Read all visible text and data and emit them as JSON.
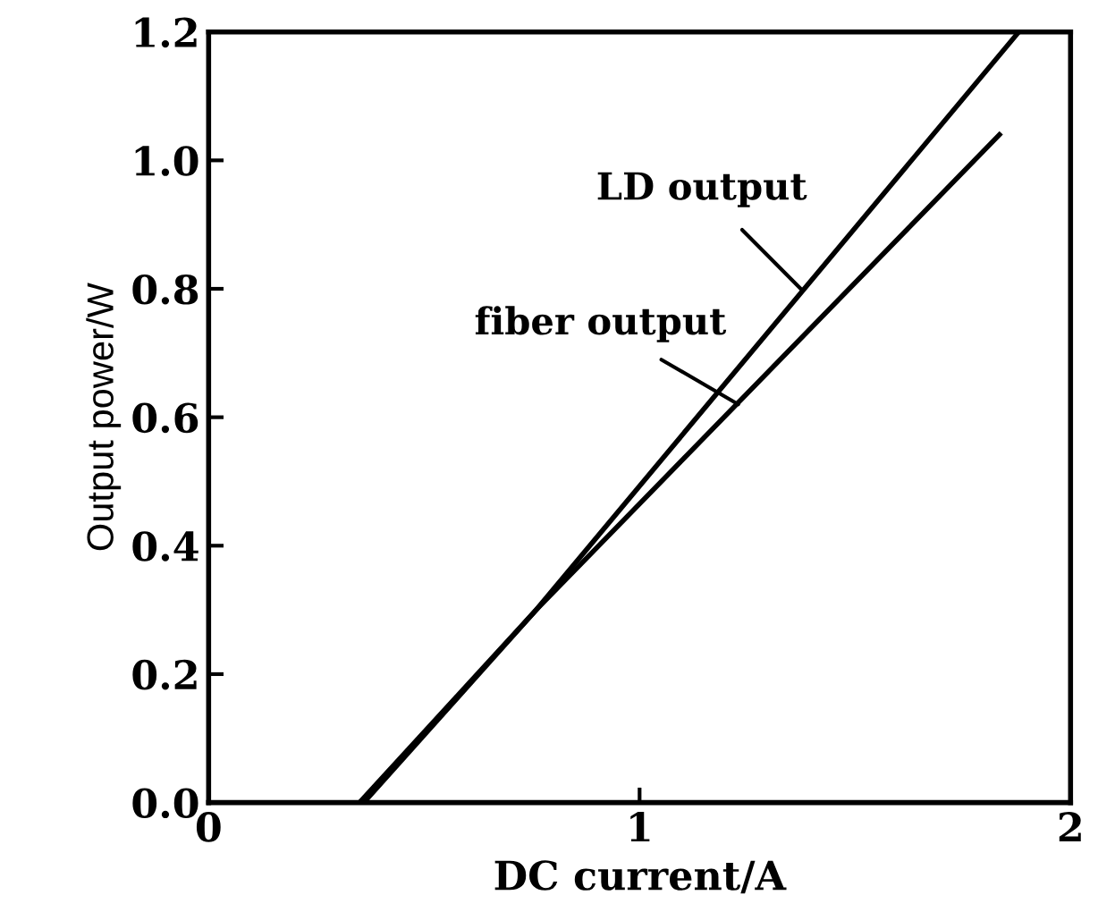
{
  "chart_data": {
    "type": "line",
    "xlabel": "DC current/A",
    "ylabel": "Output power/W",
    "xlim": [
      0,
      2
    ],
    "xticks": [
      0,
      1,
      2
    ],
    "ylim": [
      0,
      1.2
    ],
    "yticks": [
      {
        "value": 0,
        "label": "0.0"
      },
      0.2,
      0.4,
      0.6,
      0.8,
      {
        "value": 1.0,
        "label": "1.0"
      },
      1.2
    ],
    "grid": false,
    "legend": false,
    "marker": "none",
    "line_style": "solid",
    "series": [
      {
        "color": "#000000",
        "x": [
          0.35,
          0.76,
          1.88
        ],
        "values": [
          0,
          0.3,
          1.2
        ]
      },
      {
        "color": "#000000",
        "x": [
          0.36,
          0.76,
          1.835
        ],
        "values": [
          0,
          0.3,
          1.04
        ]
      }
    ],
    "annotations": [
      {
        "text": "LD output",
        "x": 1.374,
        "y": 0.8
      },
      {
        "text": "fiber output",
        "x": 1.229,
        "y": 0.62
      }
    ]
  }
}
